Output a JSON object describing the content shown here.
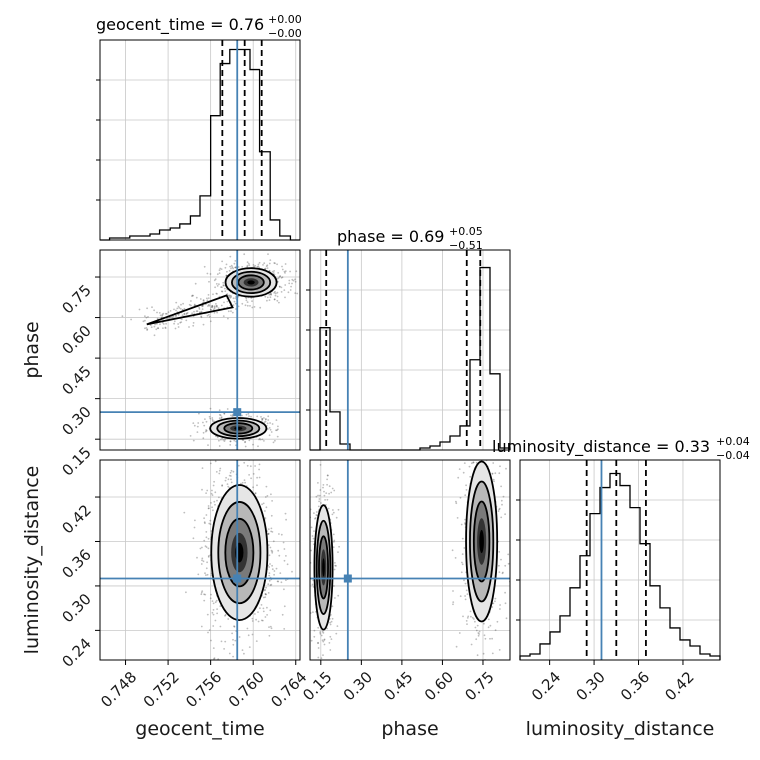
{
  "chart_data": {
    "type": "corner",
    "truth_color": "#4682b4",
    "grid": true,
    "parameters": [
      {
        "name": "geocent_time",
        "title_value": "0.76",
        "title_plus": "+0.00",
        "title_minus": "−0.00",
        "range": [
          0.7456,
          0.7644
        ],
        "ticks": [
          "0.748",
          "0.752",
          "0.756",
          "0.760",
          "0.764"
        ],
        "tick_values": [
          0.748,
          0.752,
          0.756,
          0.76,
          0.764
        ],
        "truth": 0.7585,
        "quantiles": [
          0.7571,
          0.7592,
          0.7608
        ]
      },
      {
        "name": "phase",
        "title_value": "0.69",
        "title_plus": "+0.05",
        "title_minus": "−0.51",
        "range": [
          0.11,
          0.85
        ],
        "ticks": [
          "0.15",
          "0.30",
          "0.45",
          "0.60",
          "0.75"
        ],
        "tick_values": [
          0.15,
          0.3,
          0.45,
          0.6,
          0.75
        ],
        "truth": 0.25,
        "quantiles": [
          0.17,
          0.69,
          0.74
        ]
      },
      {
        "name": "luminosity_distance",
        "title_value": "0.33",
        "title_plus": "+0.04",
        "title_minus": "−0.04",
        "range": [
          0.2,
          0.47
        ],
        "ticks": [
          "0.24",
          "0.30",
          "0.36",
          "0.42"
        ],
        "tick_values": [
          0.24,
          0.3,
          0.36,
          0.42
        ],
        "truth": 0.31,
        "quantiles": [
          0.29,
          0.33,
          0.37
        ]
      }
    ],
    "histograms": [
      {
        "param": "geocent_time",
        "bin_edges": [
          0.7456,
          0.7465,
          0.7475,
          0.7484,
          0.7494,
          0.7503,
          0.7512,
          0.7522,
          0.7531,
          0.7541,
          0.755,
          0.756,
          0.7569,
          0.7578,
          0.7588,
          0.7597,
          0.7606,
          0.7616,
          0.7625,
          0.7635,
          0.7644
        ],
        "counts": [
          0,
          1,
          1,
          2,
          2,
          3,
          5,
          6,
          8,
          12,
          22,
          62,
          88,
          95,
          95,
          85,
          44,
          10,
          2,
          0
        ],
        "max": 95
      },
      {
        "param": "phase",
        "bin_edges": [
          0.11,
          0.147,
          0.184,
          0.221,
          0.258,
          0.295,
          0.332,
          0.369,
          0.406,
          0.443,
          0.48,
          0.517,
          0.554,
          0.591,
          0.628,
          0.665,
          0.702,
          0.739,
          0.776,
          0.813,
          0.85
        ],
        "counts": [
          0,
          61,
          19,
          3,
          0,
          0,
          0,
          0,
          0,
          0,
          0,
          1,
          2,
          4,
          7,
          12,
          45,
          91,
          38,
          1
        ],
        "max": 95
      },
      {
        "param": "luminosity_distance",
        "bin_edges": [
          0.2,
          0.2135,
          0.227,
          0.2405,
          0.254,
          0.2675,
          0.281,
          0.2945,
          0.308,
          0.3215,
          0.335,
          0.3485,
          0.362,
          0.3755,
          0.389,
          0.4025,
          0.416,
          0.4295,
          0.443,
          0.4565,
          0.47
        ],
        "counts": [
          2,
          3,
          8,
          14,
          22,
          36,
          52,
          73,
          86,
          93,
          87,
          76,
          58,
          37,
          26,
          16,
          10,
          7,
          3,
          2
        ],
        "max": 95
      }
    ],
    "joint_panels": [
      {
        "x": "geocent_time",
        "y": "phase",
        "modes": [
          {
            "cx": 0.7598,
            "cy": 0.73,
            "sx": 0.001,
            "sy": 0.022,
            "weight": 0.62
          },
          {
            "cx": 0.7586,
            "cy": 0.19,
            "sx": 0.0011,
            "sy": 0.016,
            "weight": 0.38
          }
        ],
        "tail": {
          "from": [
            0.75,
            0.575
          ],
          "to": [
            0.7575,
            0.66
          ],
          "sx": 0.0014,
          "sy": 0.022,
          "weight": 0.22
        }
      },
      {
        "x": "geocent_time",
        "y": "luminosity_distance",
        "modes": [
          {
            "cx": 0.7587,
            "cy": 0.345,
            "sx": 0.0011,
            "sy": 0.038,
            "weight": 1.0
          }
        ]
      },
      {
        "x": "phase",
        "y": "luminosity_distance",
        "modes": [
          {
            "cx": 0.745,
            "cy": 0.36,
            "sx": 0.024,
            "sy": 0.045,
            "weight": 0.62
          },
          {
            "cx": 0.16,
            "cy": 0.325,
            "sx": 0.014,
            "sy": 0.035,
            "weight": 0.38
          }
        ]
      }
    ]
  }
}
